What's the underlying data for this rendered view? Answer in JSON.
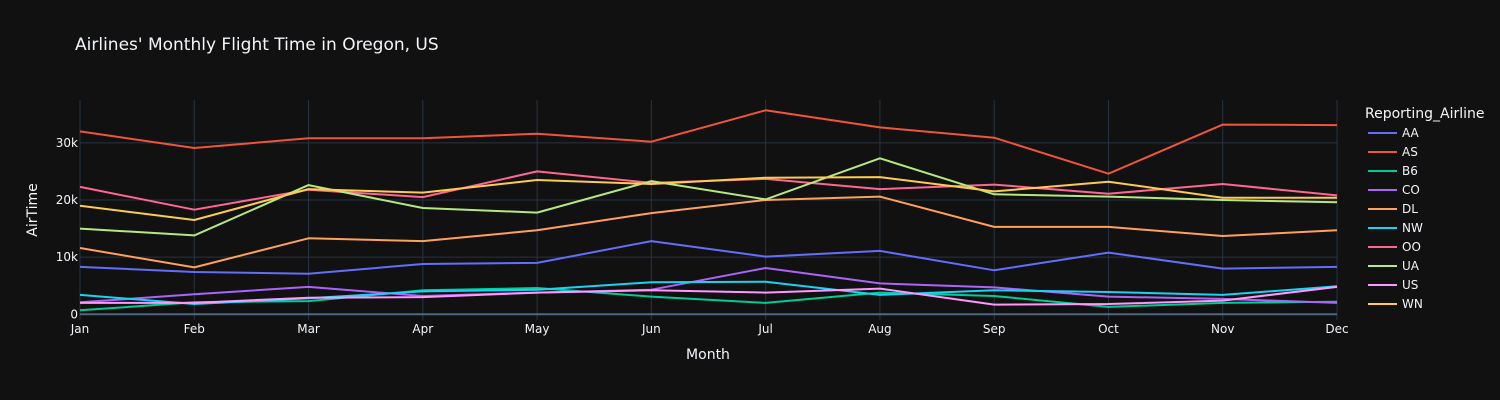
{
  "chart_data": {
    "type": "line",
    "title": "Airlines' Monthly Flight Time in Oregon, US",
    "xlabel": "Month",
    "ylabel": "AirTime",
    "categories": [
      "Jan",
      "Feb",
      "Mar",
      "Apr",
      "May",
      "Jun",
      "Jul",
      "Aug",
      "Sep",
      "Oct",
      "Nov",
      "Dec"
    ],
    "ylim": [
      -1000,
      37500
    ],
    "yticks": [
      0,
      10000,
      20000,
      30000
    ],
    "ytick_labels": [
      "0",
      "10k",
      "20k",
      "30k"
    ],
    "grid": true,
    "legend_title": "Reporting_Airline",
    "legend_position": "right",
    "series": [
      {
        "name": "AA",
        "color": "#636efa",
        "values": [
          8300,
          7400,
          7100,
          8800,
          9000,
          12800,
          10100,
          11100,
          7700,
          10800,
          8000,
          8300
        ]
      },
      {
        "name": "AS",
        "color": "#EF553B",
        "values": [
          32000,
          29100,
          30800,
          30800,
          31600,
          30200,
          35700,
          32700,
          30900,
          24600,
          33200,
          33100
        ]
      },
      {
        "name": "B6",
        "color": "#00cc96",
        "values": [
          700,
          2100,
          2300,
          4200,
          4600,
          3100,
          2000,
          3800,
          3200,
          1300,
          2000,
          2200
        ]
      },
      {
        "name": "CO",
        "color": "#ab63fa",
        "values": [
          2100,
          3500,
          4800,
          3200,
          3800,
          4300,
          8100,
          5400,
          4700,
          3100,
          2700,
          2000
        ]
      },
      {
        "name": "DL",
        "color": "#FFA15A",
        "values": [
          11600,
          8200,
          13300,
          12800,
          14700,
          17700,
          20000,
          20600,
          15300,
          15300,
          13700,
          14700
        ]
      },
      {
        "name": "NW",
        "color": "#19d3f3",
        "values": [
          3400,
          1800,
          2800,
          4000,
          4300,
          5600,
          5700,
          3400,
          4200,
          3900,
          3400,
          4900
        ]
      },
      {
        "name": "OO",
        "color": "#FF6692",
        "values": [
          22300,
          18300,
          21800,
          20500,
          25000,
          23000,
          23700,
          21900,
          22700,
          21100,
          22800,
          20800
        ]
      },
      {
        "name": "UA",
        "color": "#B6E880",
        "values": [
          15000,
          13800,
          22600,
          18600,
          17800,
          23300,
          20100,
          27300,
          21000,
          20600,
          20000,
          19600
        ]
      },
      {
        "name": "US",
        "color": "#FF97FF",
        "values": [
          2000,
          2000,
          2900,
          3000,
          3800,
          4200,
          3800,
          4500,
          1700,
          1800,
          2400,
          4800
        ]
      },
      {
        "name": "WN",
        "color": "#FECB52",
        "values": [
          19000,
          16500,
          21900,
          21300,
          23500,
          22800,
          23900,
          24000,
          21500,
          23200,
          20400,
          20400
        ]
      }
    ]
  }
}
